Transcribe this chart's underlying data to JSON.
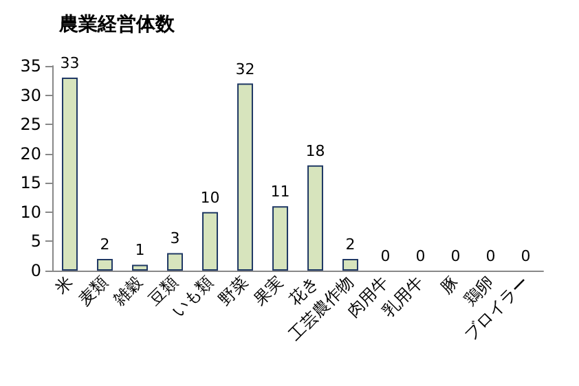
{
  "chart_data": {
    "type": "bar",
    "title": "農業経営体数",
    "categories": [
      "米",
      "麦類",
      "雑穀",
      "豆類",
      "いも類",
      "野菜",
      "果実",
      "花き",
      "工芸農作物",
      "肉用牛",
      "乳用牛",
      "豚",
      "鶏卵",
      "ブロイラー"
    ],
    "values": [
      33,
      2,
      1,
      3,
      10,
      32,
      11,
      18,
      2,
      0,
      0,
      0,
      0,
      0
    ],
    "color": "#d7e4bd",
    "ylim": [
      0,
      35
    ],
    "yticks": [
      0,
      5,
      10,
      15,
      20,
      25,
      30,
      35
    ],
    "data_labels": true,
    "grid": false
  }
}
